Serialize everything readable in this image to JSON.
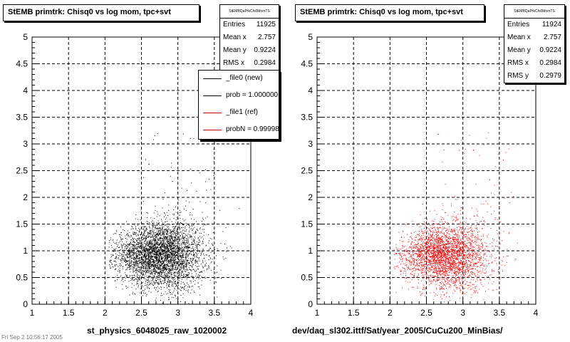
{
  "panels": [
    {
      "title": "StEMB primtrk: Chisq0 vs log mom, tpc+svt",
      "stats": {
        "name": "StEMBQaPrkChi0MomTS",
        "rows": [
          {
            "label": "Entries",
            "value": "11925"
          },
          {
            "label": "Mean x",
            "value": "2.757"
          },
          {
            "label": "Mean y",
            "value": "0.9224"
          },
          {
            "label": "RMS x",
            "value": "0.2984"
          }
        ]
      },
      "legend": [
        {
          "text": "_file0 (new)",
          "color": "#000000"
        },
        {
          "text": "prob = 1.000000",
          "color": "#000000"
        },
        {
          "text": "_file1 (ref)",
          "color": "#cc0000"
        },
        {
          "text": "probN = 0.999986",
          "color": "#cc0000"
        }
      ],
      "footer": "st_physics_6048025_raw_1020002"
    },
    {
      "title": "StEMB primtrk: Chisq0 vs log mom, tpc+svt",
      "stats": {
        "name": "StEMBQaPrkChi0MomTS",
        "rows": [
          {
            "label": "Entries",
            "value": "11924"
          },
          {
            "label": "Mean x",
            "value": "2.757"
          },
          {
            "label": "Mean y",
            "value": "0.9224"
          },
          {
            "label": "RMS x",
            "value": "0.2984"
          },
          {
            "label": "RMS y",
            "value": "0.2979"
          }
        ]
      },
      "footer": "dev/daq_sl302.ittf/Sat/year_2005/CuCu200_MinBias/"
    }
  ],
  "timestamp": "Fri Sep 2 10:56:17 2005",
  "chart_data": [
    {
      "type": "scatter",
      "title": "StEMB primtrk: Chisq0 vs log mom, tpc+svt",
      "xlabel": "st_physics_6048025_raw_1020002",
      "ylabel": "",
      "xlim": [
        1,
        4
      ],
      "ylim": [
        0,
        5
      ],
      "x_ticks": [
        "1",
        "1.5",
        "2",
        "2.5",
        "3",
        "3.5",
        "4"
      ],
      "y_ticks": [
        "0",
        "0.5",
        "1",
        "1.5",
        "2",
        "2.5",
        "3",
        "3.5",
        "4",
        "4.5",
        "5"
      ],
      "grid": true,
      "point_color": "#000000",
      "series": [
        {
          "entries": 11925,
          "mean_x": 2.757,
          "mean_y": 0.9224,
          "rms_x": 0.2984,
          "rms_y": 0.2979
        }
      ]
    },
    {
      "type": "scatter",
      "title": "StEMB primtrk: Chisq0 vs log mom, tpc+svt",
      "xlabel": "dev/daq_sl302.ittf/Sat/year_2005/CuCu200_MinBias/",
      "ylabel": "",
      "xlim": [
        1,
        4
      ],
      "ylim": [
        0,
        5
      ],
      "x_ticks": [
        "1",
        "1.5",
        "2",
        "2.5",
        "3",
        "3.5",
        "4"
      ],
      "y_ticks": [
        "0",
        "0.5",
        "1",
        "1.5",
        "2",
        "2.5",
        "3",
        "3.5",
        "4",
        "4.5",
        "5"
      ],
      "grid": true,
      "point_color": "#ff0000",
      "series": [
        {
          "entries": 11924,
          "mean_x": 2.757,
          "mean_y": 0.9224,
          "rms_x": 0.2984,
          "rms_y": 0.2979
        }
      ]
    }
  ]
}
